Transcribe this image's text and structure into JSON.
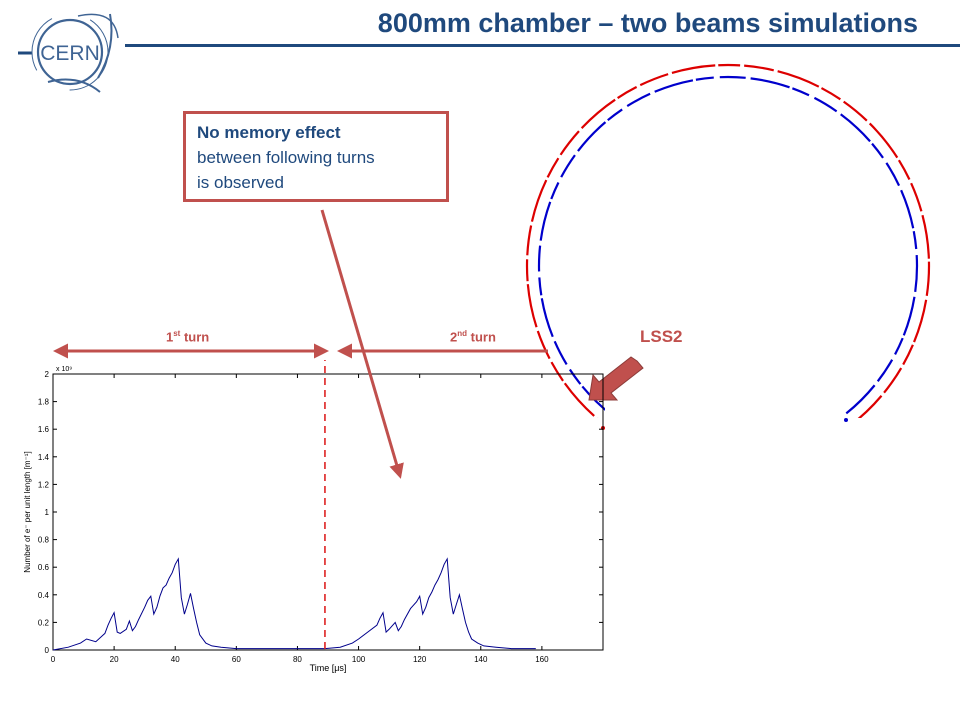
{
  "slide": {
    "title": "800mm chamber – two beams simulations",
    "logo_text": "CERN",
    "callout_bold": "No memory effect",
    "callout_line2": "between following turns",
    "callout_line3": "is observed",
    "turn1_label": "1",
    "turn1_sup": "st",
    "turn1_suffix": " turn",
    "turn2_label": "2",
    "turn2_sup": "nd",
    "turn2_suffix": " turn",
    "lss2_label": "LSS2",
    "colors": {
      "title": "#1f497d",
      "accent": "#c0504d",
      "beam_red": "#dd0000",
      "beam_blue": "#0000cc",
      "plot_line": "#00008b"
    }
  },
  "chart_data": {
    "type": "line",
    "title": "",
    "xlabel": "Time [μs]",
    "ylabel": "Number of e⁻ per unit length [m⁻¹]",
    "y_multiplier_label": "x 10⁹",
    "xlim": [
      0,
      180
    ],
    "ylim": [
      0,
      2
    ],
    "xticks": [
      "0",
      "20",
      "40",
      "60",
      "80",
      "100",
      "120",
      "140",
      "160"
    ],
    "yticks": [
      "0",
      "0.2",
      "0.4",
      "0.6",
      "0.8",
      "1",
      "1.2",
      "1.4",
      "1.6",
      "1.8",
      "2"
    ],
    "divider_x": 89,
    "series": [
      {
        "x": [
          0,
          5,
          9,
          11,
          14,
          17,
          18,
          19,
          20,
          21,
          22,
          24,
          25,
          26,
          27,
          28,
          30,
          31,
          32,
          33,
          34,
          35,
          36,
          37,
          38,
          39,
          40,
          41,
          42,
          43,
          44,
          45,
          46,
          47,
          48,
          50,
          52,
          55,
          60,
          70,
          80,
          85,
          89,
          94,
          98,
          100,
          103,
          106,
          107,
          108,
          109,
          110,
          112,
          113,
          114,
          115,
          117,
          119,
          120,
          121,
          122,
          123,
          124,
          125,
          126,
          127,
          128,
          129,
          130,
          131,
          132,
          133,
          134,
          135,
          136,
          137,
          139,
          141,
          145,
          150,
          158
        ],
        "y": [
          0,
          0.02,
          0.05,
          0.08,
          0.06,
          0.12,
          0.18,
          0.23,
          0.27,
          0.13,
          0.12,
          0.15,
          0.21,
          0.14,
          0.17,
          0.22,
          0.31,
          0.36,
          0.39,
          0.26,
          0.31,
          0.39,
          0.45,
          0.47,
          0.52,
          0.56,
          0.62,
          0.66,
          0.38,
          0.26,
          0.33,
          0.41,
          0.3,
          0.2,
          0.11,
          0.05,
          0.03,
          0.02,
          0.01,
          0.01,
          0.01,
          0.01,
          0.01,
          0.02,
          0.05,
          0.08,
          0.13,
          0.18,
          0.23,
          0.27,
          0.13,
          0.15,
          0.2,
          0.14,
          0.17,
          0.22,
          0.3,
          0.35,
          0.39,
          0.26,
          0.31,
          0.38,
          0.42,
          0.47,
          0.51,
          0.56,
          0.62,
          0.66,
          0.38,
          0.26,
          0.33,
          0.4,
          0.3,
          0.2,
          0.13,
          0.08,
          0.05,
          0.03,
          0.02,
          0.01,
          0.01
        ]
      }
    ]
  }
}
